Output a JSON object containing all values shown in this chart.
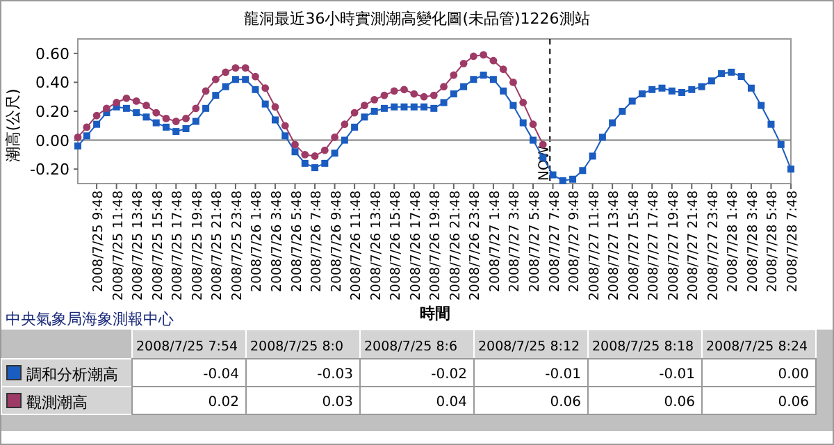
{
  "chart_data": [
    {
      "type": "line",
      "title": "龍洞最近36小時實測潮高變化圖(未品管)1226測站",
      "xlabel": "時間",
      "ylabel": "潮高(公尺)",
      "annotations": [
        "中央氣象局海象測報中心"
      ],
      "x": [
        "2008-07-25T07:54",
        "2008-07-25T08:48",
        "2008-07-25T09:48",
        "2008-07-25T10:48",
        "2008-07-25T11:48",
        "2008-07-25T12:48",
        "2008-07-25T13:48",
        "2008-07-25T14:48",
        "2008-07-25T15:48",
        "2008-07-25T16:48",
        "2008-07-25T17:48",
        "2008-07-25T18:48",
        "2008-07-25T19:48",
        "2008-07-25T20:48",
        "2008-07-25T21:48",
        "2008-07-25T22:48",
        "2008-07-25T23:48",
        "2008-07-26T00:48",
        "2008-07-26T01:48",
        "2008-07-26T02:48",
        "2008-07-26T03:48",
        "2008-07-26T04:48",
        "2008-07-26T05:48",
        "2008-07-26T06:48",
        "2008-07-26T07:48",
        "2008-07-26T08:48",
        "2008-07-26T09:48",
        "2008-07-26T10:48",
        "2008-07-26T11:48",
        "2008-07-26T12:48",
        "2008-07-26T13:48",
        "2008-07-26T14:48",
        "2008-07-26T15:48",
        "2008-07-26T16:48",
        "2008-07-26T17:48",
        "2008-07-26T18:48",
        "2008-07-26T19:48",
        "2008-07-26T20:48",
        "2008-07-26T21:48",
        "2008-07-26T22:48",
        "2008-07-26T23:48",
        "2008-07-27T00:48",
        "2008-07-27T01:48",
        "2008-07-27T02:48",
        "2008-07-27T03:48",
        "2008-07-27T04:48",
        "2008-07-27T05:48",
        "2008-07-27T06:48",
        "2008-07-27T07:48",
        "2008-07-27T08:48",
        "2008-07-27T09:48",
        "2008-07-27T10:48",
        "2008-07-27T11:48",
        "2008-07-27T12:48",
        "2008-07-27T13:48",
        "2008-07-27T14:48",
        "2008-07-27T15:48",
        "2008-07-27T16:48",
        "2008-07-27T17:48",
        "2008-07-27T18:48",
        "2008-07-27T19:48",
        "2008-07-27T20:48",
        "2008-07-27T21:48",
        "2008-07-27T22:48",
        "2008-07-27T23:48",
        "2008-07-28T00:48",
        "2008-07-28T01:48",
        "2008-07-28T02:48",
        "2008-07-28T03:48",
        "2008-07-28T04:48",
        "2008-07-28T05:48",
        "2008-07-28T06:48",
        "2008-07-28T07:48"
      ],
      "series": [
        {
          "name": "調和分析潮高",
          "color": "#1a5cc0",
          "marker": "square",
          "values": [
            -0.04,
            0.03,
            0.11,
            0.19,
            0.23,
            0.22,
            0.19,
            0.16,
            0.12,
            0.09,
            0.06,
            0.08,
            0.13,
            0.22,
            0.31,
            0.37,
            0.42,
            0.42,
            0.35,
            0.25,
            0.14,
            0.03,
            -0.08,
            -0.16,
            -0.19,
            -0.16,
            -0.09,
            0.0,
            0.09,
            0.16,
            0.2,
            0.22,
            0.23,
            0.23,
            0.23,
            0.23,
            0.22,
            0.26,
            0.32,
            0.37,
            0.42,
            0.45,
            0.42,
            0.34,
            0.24,
            0.12,
            0.0,
            -0.12,
            -0.24,
            -0.28,
            -0.27,
            -0.21,
            -0.11,
            0.02,
            0.12,
            0.2,
            0.27,
            0.32,
            0.35,
            0.36,
            0.34,
            0.33,
            0.35,
            0.37,
            0.41,
            0.46,
            0.47,
            0.44,
            0.36,
            0.24,
            0.11,
            -0.03,
            -0.2
          ]
        },
        {
          "name": "觀測潮高",
          "color": "#9e3a66",
          "marker": "circle",
          "values": [
            0.02,
            0.09,
            0.17,
            0.22,
            0.26,
            0.29,
            0.27,
            0.24,
            0.19,
            0.15,
            0.13,
            0.15,
            0.22,
            0.34,
            0.42,
            0.47,
            0.5,
            0.5,
            0.44,
            0.36,
            0.23,
            0.1,
            -0.03,
            -0.1,
            -0.11,
            -0.07,
            0.02,
            0.11,
            0.19,
            0.24,
            0.28,
            0.31,
            0.34,
            0.35,
            0.32,
            0.3,
            0.31,
            0.37,
            0.45,
            0.53,
            0.58,
            0.59,
            0.55,
            0.49,
            0.4,
            0.26,
            0.11,
            -0.03,
            null,
            null,
            null,
            null,
            null,
            null,
            null,
            null,
            null,
            null,
            null,
            null,
            null,
            null,
            null,
            null,
            null,
            null,
            null,
            null,
            null,
            null,
            null,
            null,
            null
          ]
        }
      ],
      "xlim": [
        "2008-07-25T07:54",
        "2008-07-28T07:48"
      ],
      "xticks": [
        {
          "value": "2008-07-25T09:48",
          "label": "2008/7/25 9:48"
        },
        {
          "value": "2008-07-25T11:48",
          "label": "2008/7/25 11:48"
        },
        {
          "value": "2008-07-25T13:48",
          "label": "2008/7/25 13:48"
        },
        {
          "value": "2008-07-25T15:48",
          "label": "2008/7/25 15:48"
        },
        {
          "value": "2008-07-25T17:48",
          "label": "2008/7/25 17:48"
        },
        {
          "value": "2008-07-25T19:48",
          "label": "2008/7/25 19:48"
        },
        {
          "value": "2008-07-25T21:48",
          "label": "2008/7/25 21:48"
        },
        {
          "value": "2008-07-25T23:48",
          "label": "2008/7/25 23:48"
        },
        {
          "value": "2008-07-26T01:48",
          "label": "2008/7/26 1:48"
        },
        {
          "value": "2008-07-26T03:48",
          "label": "2008/7/26 3:48"
        },
        {
          "value": "2008-07-26T05:48",
          "label": "2008/7/26 5:48"
        },
        {
          "value": "2008-07-26T07:48",
          "label": "2008/7/26 7:48"
        },
        {
          "value": "2008-07-26T09:48",
          "label": "2008/7/26 9:48"
        },
        {
          "value": "2008-07-26T11:48",
          "label": "2008/7/26 11:48"
        },
        {
          "value": "2008-07-26T13:48",
          "label": "2008/7/26 13:48"
        },
        {
          "value": "2008-07-26T15:48",
          "label": "2008/7/26 15:48"
        },
        {
          "value": "2008-07-26T17:48",
          "label": "2008/7/26 17:48"
        },
        {
          "value": "2008-07-26T19:48",
          "label": "2008/7/26 19:48"
        },
        {
          "value": "2008-07-26T21:48",
          "label": "2008/7/26 21:48"
        },
        {
          "value": "2008-07-26T23:48",
          "label": "2008/7/26 23:48"
        },
        {
          "value": "2008-07-27T01:48",
          "label": "2008/7/27 1:48"
        },
        {
          "value": "2008-07-27T03:48",
          "label": "2008/7/27 3:48"
        },
        {
          "value": "2008-07-27T05:48",
          "label": "2008/7/27 5:48"
        },
        {
          "value": "2008-07-27T07:48",
          "label": "2008/7/27 7:48"
        },
        {
          "value": "2008-07-27T09:48",
          "label": "2008/7/27 9:48"
        },
        {
          "value": "2008-07-27T11:48",
          "label": "2008/7/27 11:48"
        },
        {
          "value": "2008-07-27T13:48",
          "label": "2008/7/27 13:48"
        },
        {
          "value": "2008-07-27T15:48",
          "label": "2008/7/27 15:48"
        },
        {
          "value": "2008-07-27T17:48",
          "label": "2008/7/27 17:48"
        },
        {
          "value": "2008-07-27T19:48",
          "label": "2008/7/27 19:48"
        },
        {
          "value": "2008-07-27T21:48",
          "label": "2008/7/27 21:48"
        },
        {
          "value": "2008-07-27T23:48",
          "label": "2008/7/27 23:48"
        },
        {
          "value": "2008-07-28T01:48",
          "label": "2008/7/28 1:48"
        },
        {
          "value": "2008-07-28T03:48",
          "label": "2008/7/28 3:48"
        },
        {
          "value": "2008-07-28T05:48",
          "label": "2008/7/28 5:48"
        },
        {
          "value": "2008-07-28T07:48",
          "label": "2008/7/28 7:48"
        }
      ],
      "ylim": [
        -0.3,
        0.7
      ],
      "yticks": [
        {
          "value": -0.2,
          "label": "-0.20"
        },
        {
          "value": 0,
          "label": "0.00"
        },
        {
          "value": 0.2,
          "label": "0.20"
        },
        {
          "value": 0.4,
          "label": "0.40"
        },
        {
          "value": 0.6,
          "label": "0.60"
        }
      ],
      "ref_lines": [
        {
          "axis": "x",
          "value": "2008-07-27T07:30",
          "label": "NOW",
          "color": "#000000",
          "line_style": "dashed"
        },
        {
          "axis": "y",
          "value": 0,
          "color": "#808080",
          "line_style": "solid"
        }
      ],
      "grid": false,
      "legend": "bottom",
      "line_style": "solid"
    },
    {
      "type": "other",
      "categories": [
        "2008/7/25 7:54",
        "2008/7/25 8:0",
        "2008/7/25 8:6",
        "2008/7/25 8:12",
        "2008/7/25 8:18",
        "2008/7/25 8:24"
      ],
      "series": [
        {
          "values": [
            -0.04,
            -0.03,
            -0.02,
            -0.01,
            -0.01,
            0.0
          ],
          "value_labels": [
            "-0.04",
            "-0.03",
            "-0.02",
            "-0.01",
            "-0.01",
            "0.00"
          ]
        },
        {
          "values": [
            0.02,
            0.03,
            0.04,
            0.06,
            0.06,
            0.06
          ],
          "value_labels": [
            "0.02",
            "0.03",
            "0.04",
            "0.06",
            "0.06",
            "0.06"
          ]
        }
      ]
    }
  ]
}
